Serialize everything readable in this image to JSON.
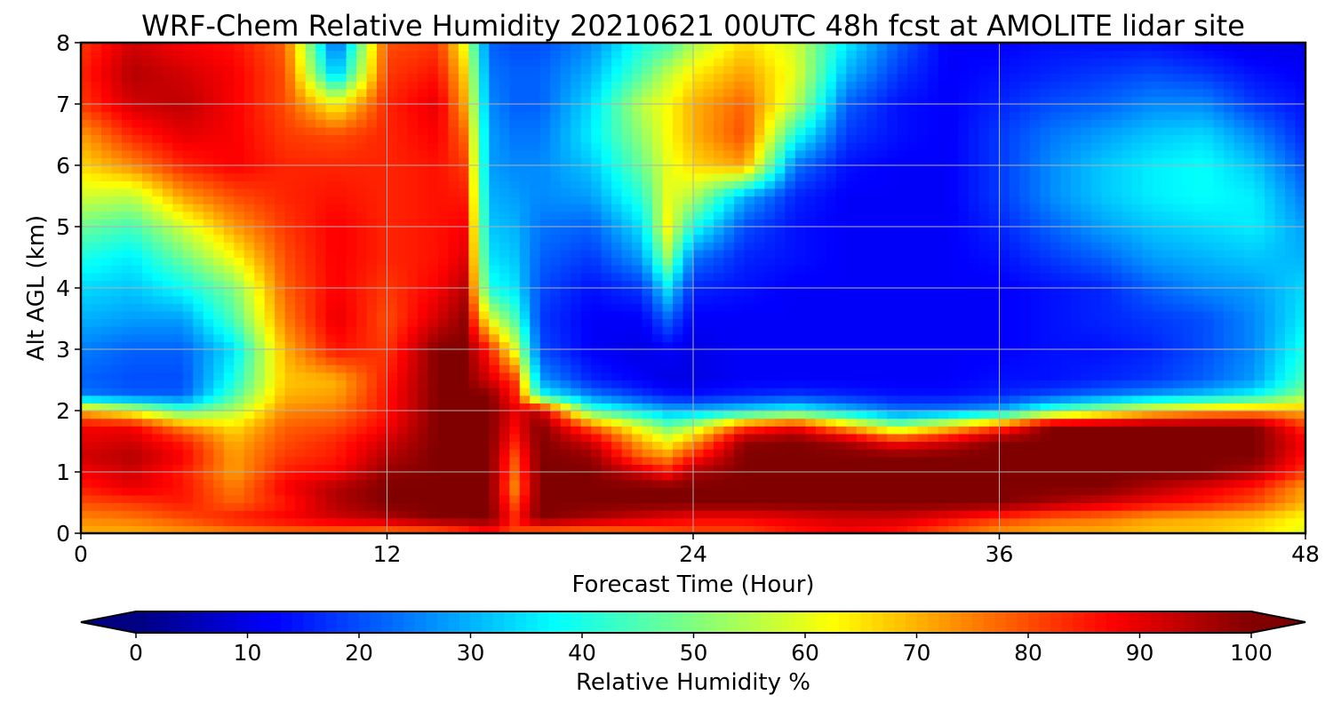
{
  "chart_data": {
    "type": "heatmap",
    "title": "WRF-Chem Relative Humidity 20210621 00UTC 48h fcst at AMOLITE lidar site",
    "xlabel": "Forecast Time (Hour)",
    "ylabel": "Alt AGL (km)",
    "xlim": [
      0,
      48
    ],
    "ylim": [
      0,
      8
    ],
    "xticks": [
      "0",
      "12",
      "24",
      "36",
      "48"
    ],
    "yticks": [
      "0",
      "1",
      "2",
      "3",
      "4",
      "5",
      "6",
      "7",
      "8"
    ],
    "grid": true,
    "colormap": "jet",
    "colorbar": {
      "label": "Relative Humidity %",
      "range": [
        0,
        100
      ],
      "ticks": [
        "0",
        "10",
        "20",
        "30",
        "40",
        "50",
        "60",
        "70",
        "80",
        "90",
        "100"
      ],
      "extend": "both"
    },
    "x": [
      0,
      2,
      4,
      6,
      8,
      10,
      12,
      14,
      15,
      16,
      17,
      18,
      20,
      22,
      23,
      24,
      26,
      28,
      30,
      32,
      34,
      36,
      38,
      40,
      42,
      44,
      46,
      48
    ],
    "y": [
      0,
      0.25,
      0.5,
      0.75,
      1,
      1.25,
      1.5,
      1.75,
      2,
      2.25,
      2.5,
      3,
      3.5,
      4,
      4.5,
      5,
      5.5,
      6,
      6.5,
      7,
      7.5,
      8
    ],
    "values": [
      [
        70,
        70,
        72,
        74,
        76,
        76,
        74,
        76,
        80,
        85,
        80,
        75,
        74,
        76,
        78,
        80,
        80,
        85,
        88,
        85,
        78,
        72,
        70,
        70,
        68,
        68,
        65,
        60
      ],
      [
        74,
        76,
        80,
        85,
        88,
        92,
        95,
        100,
        100,
        100,
        85,
        100,
        96,
        92,
        90,
        88,
        88,
        90,
        92,
        92,
        88,
        82,
        78,
        76,
        72,
        70,
        68,
        62
      ],
      [
        80,
        82,
        85,
        78,
        85,
        95,
        100,
        100,
        100,
        100,
        80,
        100,
        100,
        100,
        100,
        100,
        100,
        100,
        100,
        100,
        100,
        100,
        96,
        92,
        88,
        85,
        80,
        70
      ],
      [
        85,
        90,
        86,
        75,
        88,
        95,
        100,
        100,
        100,
        100,
        75,
        100,
        100,
        100,
        100,
        100,
        100,
        100,
        100,
        100,
        100,
        100,
        100,
        100,
        95,
        90,
        85,
        72
      ],
      [
        88,
        92,
        85,
        72,
        85,
        88,
        98,
        100,
        100,
        100,
        78,
        100,
        100,
        92,
        86,
        96,
        100,
        100,
        100,
        100,
        100,
        100,
        100,
        100,
        100,
        100,
        95,
        82
      ],
      [
        92,
        95,
        88,
        72,
        82,
        85,
        95,
        100,
        100,
        100,
        80,
        100,
        98,
        78,
        74,
        85,
        100,
        100,
        100,
        100,
        100,
        100,
        100,
        100,
        100,
        100,
        100,
        86
      ],
      [
        90,
        92,
        85,
        70,
        80,
        84,
        92,
        100,
        100,
        100,
        85,
        100,
        92,
        70,
        62,
        72,
        98,
        100,
        96,
        86,
        92,
        100,
        100,
        100,
        100,
        100,
        100,
        88
      ],
      [
        88,
        88,
        74,
        65,
        78,
        80,
        88,
        100,
        100,
        100,
        88,
        100,
        78,
        58,
        48,
        55,
        80,
        88,
        70,
        52,
        65,
        80,
        100,
        100,
        100,
        100,
        100,
        82
      ],
      [
        70,
        60,
        45,
        55,
        74,
        76,
        86,
        100,
        100,
        100,
        90,
        94,
        45,
        35,
        30,
        30,
        35,
        40,
        32,
        24,
        25,
        30,
        45,
        55,
        65,
        70,
        72,
        70
      ],
      [
        25,
        22,
        22,
        45,
        70,
        72,
        86,
        100,
        100,
        100,
        85,
        40,
        25,
        18,
        15,
        14,
        16,
        18,
        16,
        14,
        14,
        16,
        20,
        24,
        28,
        32,
        38,
        52
      ],
      [
        22,
        20,
        20,
        40,
        68,
        70,
        85,
        100,
        100,
        92,
        82,
        28,
        16,
        12,
        10,
        10,
        12,
        12,
        12,
        12,
        12,
        14,
        14,
        16,
        18,
        22,
        28,
        45
      ],
      [
        25,
        22,
        22,
        35,
        70,
        86,
        82,
        100,
        100,
        85,
        60,
        20,
        12,
        10,
        12,
        10,
        12,
        12,
        12,
        12,
        12,
        12,
        14,
        14,
        16,
        20,
        26,
        40
      ],
      [
        30,
        28,
        28,
        45,
        75,
        90,
        80,
        92,
        98,
        60,
        45,
        18,
        12,
        12,
        22,
        12,
        12,
        12,
        12,
        12,
        12,
        12,
        14,
        16,
        18,
        20,
        26,
        36
      ],
      [
        34,
        32,
        38,
        50,
        78,
        88,
        82,
        88,
        94,
        40,
        35,
        20,
        14,
        18,
        35,
        16,
        14,
        12,
        12,
        12,
        12,
        12,
        14,
        16,
        22,
        26,
        28,
        34
      ],
      [
        40,
        36,
        48,
        62,
        80,
        88,
        84,
        86,
        90,
        35,
        32,
        22,
        18,
        28,
        52,
        24,
        16,
        14,
        12,
        12,
        12,
        14,
        18,
        22,
        28,
        30,
        32,
        30
      ],
      [
        48,
        44,
        58,
        72,
        82,
        88,
        84,
        86,
        88,
        32,
        30,
        24,
        22,
        35,
        62,
        40,
        20,
        14,
        12,
        12,
        12,
        16,
        22,
        28,
        32,
        34,
        36,
        28
      ],
      [
        58,
        56,
        72,
        80,
        84,
        86,
        84,
        86,
        85,
        30,
        28,
        26,
        28,
        42,
        60,
        55,
        30,
        16,
        12,
        12,
        12,
        18,
        26,
        32,
        36,
        38,
        36,
        24
      ],
      [
        66,
        74,
        84,
        88,
        84,
        84,
        84,
        86,
        82,
        28,
        26,
        26,
        32,
        48,
        60,
        66,
        72,
        24,
        14,
        12,
        12,
        18,
        26,
        32,
        36,
        38,
        32,
        20
      ],
      [
        72,
        84,
        90,
        88,
        82,
        80,
        84,
        88,
        78,
        28,
        24,
        24,
        36,
        52,
        62,
        70,
        80,
        40,
        18,
        14,
        12,
        18,
        24,
        28,
        32,
        34,
        26,
        16
      ],
      [
        82,
        92,
        94,
        88,
        80,
        62,
        84,
        90,
        72,
        26,
        22,
        22,
        34,
        56,
        62,
        70,
        78,
        56,
        22,
        14,
        12,
        16,
        20,
        22,
        26,
        26,
        18,
        14
      ],
      [
        84,
        95,
        92,
        88,
        80,
        30,
        82,
        86,
        68,
        24,
        22,
        22,
        30,
        46,
        56,
        64,
        72,
        60,
        30,
        18,
        12,
        14,
        16,
        18,
        20,
        18,
        14,
        12
      ],
      [
        82,
        92,
        88,
        86,
        78,
        20,
        80,
        82,
        62,
        22,
        20,
        20,
        26,
        40,
        44,
        54,
        66,
        58,
        36,
        22,
        12,
        12,
        14,
        14,
        14,
        12,
        10,
        10
      ]
    ]
  }
}
